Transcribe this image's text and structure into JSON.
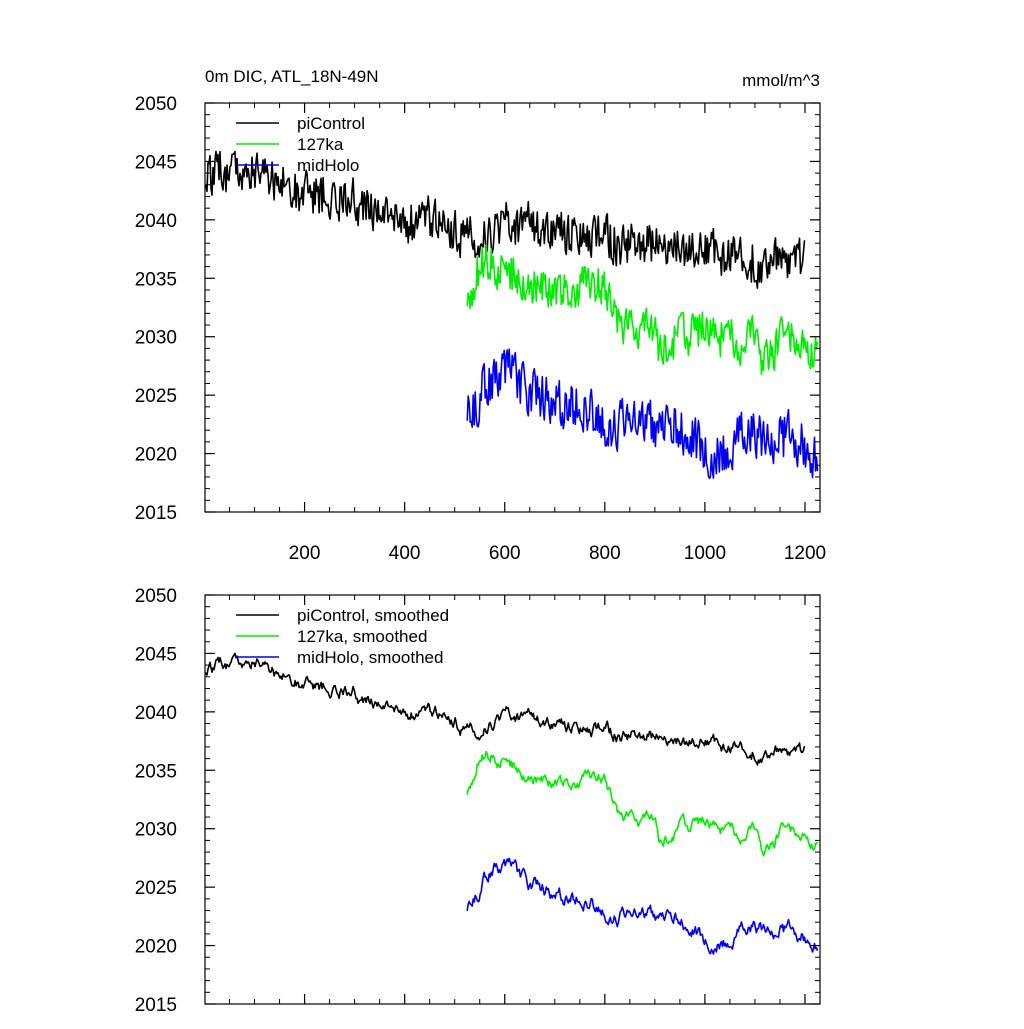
{
  "figure": {
    "title_left": "0m DIC, ATL_18N-49N",
    "title_right": "mmol/m^3"
  },
  "colors": {
    "piControl": "#000000",
    "127ka": "#00ee00",
    "midHolo": "#0000ee",
    "axis": "#000000"
  },
  "chart_data": [
    {
      "type": "line",
      "panel": "top",
      "title": "0m DIC, ATL_18N-49N",
      "units": "mmol/m^3",
      "xlim": [
        1,
        1230
      ],
      "ylim": [
        2015,
        2050
      ],
      "xticks": [
        200,
        400,
        600,
        800,
        1000,
        1200
      ],
      "xtick_labels": [
        "200",
        "400",
        "600",
        "800",
        "1000",
        "1200"
      ],
      "yticks": [
        2015,
        2020,
        2025,
        2030,
        2035,
        2040,
        2045,
        2050
      ],
      "ytick_labels": [
        "2015",
        "2020",
        "2025",
        "2030",
        "2035",
        "2040",
        "2045",
        "2050"
      ],
      "legend": [
        "piControl",
        "127ka",
        "midHolo"
      ],
      "legend_position": "top-left",
      "series": [
        {
          "name": "piControl",
          "color_key": "piControl",
          "noise": 1.6,
          "x": [
            1,
            50,
            100,
            150,
            200,
            250,
            300,
            320,
            350,
            400,
            450,
            500,
            520,
            550,
            600,
            650,
            700,
            750,
            800,
            850,
            900,
            950,
            1000,
            1050,
            1100,
            1150,
            1200
          ],
          "y": [
            2043.5,
            2044.2,
            2044.5,
            2043.2,
            2042.5,
            2042.0,
            2041.8,
            2040.8,
            2040.5,
            2040.0,
            2039.8,
            2039.5,
            2038.5,
            2038.2,
            2040.0,
            2039.5,
            2038.8,
            2038.5,
            2038.2,
            2038.0,
            2037.8,
            2037.2,
            2037.5,
            2037.0,
            2036.8,
            2036.5,
            2036.5
          ]
        },
        {
          "name": "127ka",
          "color_key": "127ka",
          "noise": 1.5,
          "x": [
            525,
            550,
            600,
            650,
            700,
            750,
            800,
            830,
            850,
            900,
            910,
            950,
            1000,
            1050,
            1100,
            1120,
            1150,
            1200,
            1225
          ],
          "y": [
            2033.0,
            2036.5,
            2036.0,
            2034.8,
            2033.8,
            2034.0,
            2034.5,
            2031.0,
            2031.2,
            2031.2,
            2028.8,
            2030.0,
            2030.5,
            2029.8,
            2029.5,
            2027.5,
            2029.5,
            2029.5,
            2028.8
          ]
        },
        {
          "name": "midHolo",
          "color_key": "midHolo",
          "noise": 1.8,
          "x": [
            525,
            550,
            580,
            600,
            650,
            700,
            750,
            800,
            850,
            900,
            950,
            1000,
            1050,
            1100,
            1150,
            1200,
            1225
          ],
          "y": [
            2023.0,
            2025.0,
            2027.0,
            2026.5,
            2025.2,
            2024.5,
            2024.0,
            2023.2,
            2022.5,
            2022.8,
            2022.5,
            2020.8,
            2020.8,
            2021.5,
            2021.5,
            2020.8,
            2020.5
          ]
        }
      ]
    },
    {
      "type": "line",
      "panel": "bottom",
      "xlim": [
        1,
        1230
      ],
      "ylim": [
        2015,
        2050
      ],
      "xticks": [
        200,
        400,
        600,
        800,
        1000,
        1200
      ],
      "yticks": [
        2015,
        2020,
        2025,
        2030,
        2035,
        2040,
        2045,
        2050
      ],
      "ytick_labels": [
        "2015",
        "2020",
        "2025",
        "2030",
        "2035",
        "2040",
        "2045",
        "2050"
      ],
      "legend": [
        "piControl, smoothed",
        "127ka, smoothed",
        "midHolo, smoothed"
      ],
      "legend_position": "top-left",
      "series": [
        {
          "name": "piControl, smoothed",
          "color_key": "piControl",
          "noise": 0.8,
          "x": [
            1,
            50,
            100,
            150,
            200,
            250,
            300,
            320,
            350,
            400,
            450,
            500,
            520,
            550,
            600,
            650,
            700,
            750,
            800,
            850,
            900,
            950,
            1000,
            1050,
            1100,
            1150,
            1200
          ],
          "y": [
            2043.5,
            2044.2,
            2044.5,
            2043.2,
            2042.5,
            2042.0,
            2041.8,
            2040.8,
            2040.5,
            2040.0,
            2039.8,
            2039.5,
            2038.5,
            2038.2,
            2040.0,
            2039.5,
            2038.8,
            2038.5,
            2038.2,
            2038.0,
            2037.8,
            2037.2,
            2037.5,
            2037.0,
            2036.8,
            2036.5,
            2036.5
          ]
        },
        {
          "name": "127ka, smoothed",
          "color_key": "127ka",
          "noise": 0.8,
          "x": [
            525,
            550,
            600,
            650,
            700,
            750,
            800,
            830,
            850,
            900,
            910,
            950,
            1000,
            1050,
            1100,
            1120,
            1150,
            1200,
            1225
          ],
          "y": [
            2033.0,
            2036.5,
            2036.0,
            2034.8,
            2033.8,
            2034.0,
            2034.5,
            2031.0,
            2031.2,
            2031.2,
            2028.8,
            2030.0,
            2030.5,
            2029.8,
            2029.5,
            2027.5,
            2029.5,
            2029.5,
            2028.8
          ]
        },
        {
          "name": "midHolo, smoothed",
          "color_key": "midHolo",
          "noise": 0.9,
          "x": [
            525,
            550,
            580,
            600,
            650,
            700,
            750,
            800,
            850,
            900,
            950,
            1000,
            1050,
            1100,
            1150,
            1200,
            1225
          ],
          "y": [
            2023.0,
            2025.0,
            2027.0,
            2026.5,
            2025.2,
            2024.5,
            2024.0,
            2023.2,
            2022.5,
            2022.8,
            2022.5,
            2020.8,
            2020.8,
            2021.5,
            2021.5,
            2020.8,
            2020.5
          ]
        }
      ]
    }
  ]
}
